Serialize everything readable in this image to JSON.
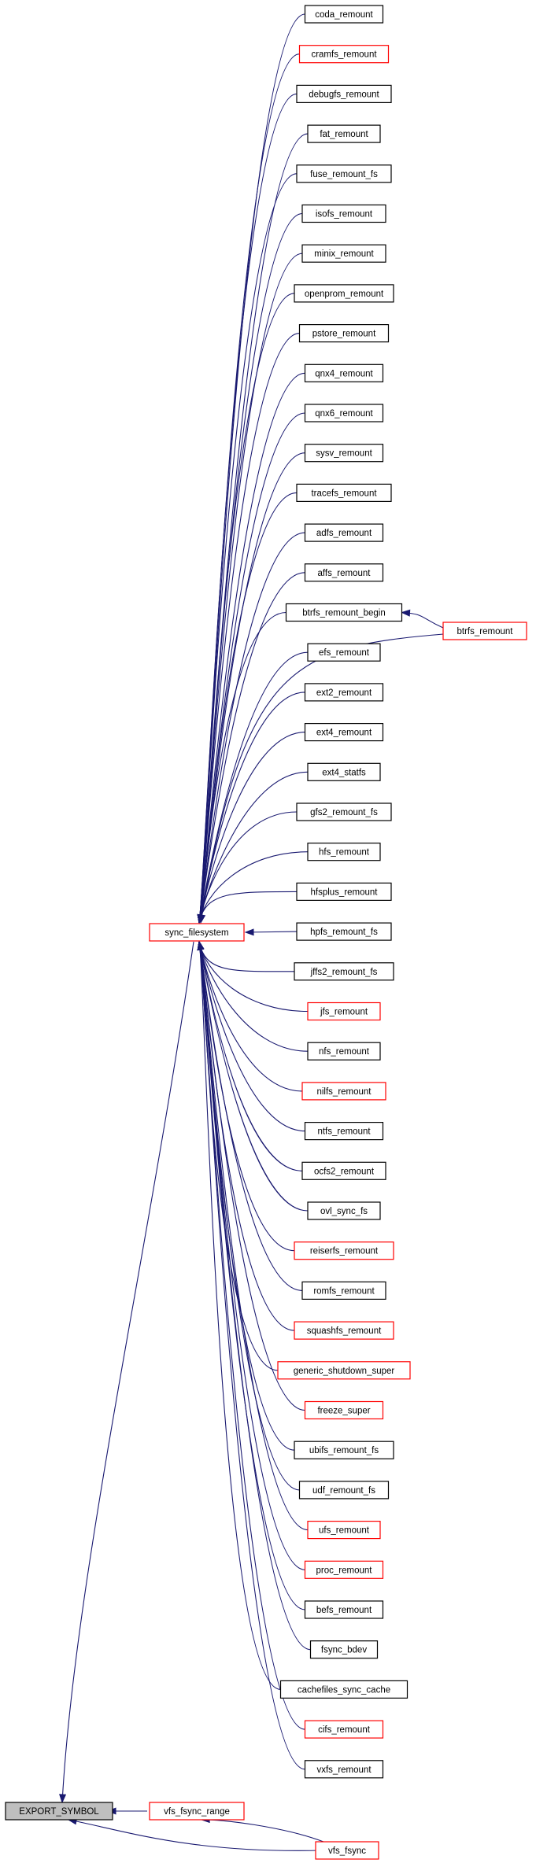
{
  "graph": {
    "colors": {
      "edge": "#191970",
      "normal_border": "#000000",
      "truncated_border": "#ff0000",
      "focus_fill": "#bfbfbf"
    },
    "focus": "EXPORT_SYMBOL",
    "hub": "sync_filesystem",
    "nodes": {
      "export_symbol": {
        "label": "EXPORT_SYMBOL",
        "style": "focus"
      },
      "sync_filesystem": {
        "label": "sync_filesystem",
        "style": "truncated"
      },
      "vfs_fsync_range": {
        "label": "vfs_fsync_range",
        "style": "truncated"
      },
      "vfs_fsync": {
        "label": "vfs_fsync",
        "style": "truncated"
      },
      "btrfs_remount": {
        "label": "btrfs_remount",
        "style": "truncated"
      }
    },
    "callers": [
      {
        "label": "coda_remount",
        "style": "normal"
      },
      {
        "label": "cramfs_remount",
        "style": "truncated"
      },
      {
        "label": "debugfs_remount",
        "style": "normal"
      },
      {
        "label": "fat_remount",
        "style": "normal"
      },
      {
        "label": "fuse_remount_fs",
        "style": "normal"
      },
      {
        "label": "isofs_remount",
        "style": "normal"
      },
      {
        "label": "minix_remount",
        "style": "normal"
      },
      {
        "label": "openprom_remount",
        "style": "normal"
      },
      {
        "label": "pstore_remount",
        "style": "normal"
      },
      {
        "label": "qnx4_remount",
        "style": "normal"
      },
      {
        "label": "qnx6_remount",
        "style": "normal"
      },
      {
        "label": "sysv_remount",
        "style": "normal"
      },
      {
        "label": "tracefs_remount",
        "style": "normal"
      },
      {
        "label": "adfs_remount",
        "style": "normal"
      },
      {
        "label": "affs_remount",
        "style": "normal"
      },
      {
        "label": "btrfs_remount_begin",
        "style": "normal"
      },
      {
        "label": "efs_remount",
        "style": "normal"
      },
      {
        "label": "ext2_remount",
        "style": "normal"
      },
      {
        "label": "ext4_remount",
        "style": "normal"
      },
      {
        "label": "ext4_statfs",
        "style": "normal"
      },
      {
        "label": "gfs2_remount_fs",
        "style": "normal"
      },
      {
        "label": "hfs_remount",
        "style": "normal"
      },
      {
        "label": "hfsplus_remount",
        "style": "normal"
      },
      {
        "label": "hpfs_remount_fs",
        "style": "normal"
      },
      {
        "label": "jffs2_remount_fs",
        "style": "normal"
      },
      {
        "label": "jfs_remount",
        "style": "truncated"
      },
      {
        "label": "nfs_remount",
        "style": "normal"
      },
      {
        "label": "nilfs_remount",
        "style": "truncated"
      },
      {
        "label": "ntfs_remount",
        "style": "normal"
      },
      {
        "label": "ocfs2_remount",
        "style": "normal"
      },
      {
        "label": "ovl_sync_fs",
        "style": "normal"
      },
      {
        "label": "reiserfs_remount",
        "style": "truncated"
      },
      {
        "label": "romfs_remount",
        "style": "normal"
      },
      {
        "label": "squashfs_remount",
        "style": "truncated"
      },
      {
        "label": "generic_shutdown_super",
        "style": "truncated"
      },
      {
        "label": "freeze_super",
        "style": "truncated"
      },
      {
        "label": "ubifs_remount_fs",
        "style": "normal"
      },
      {
        "label": "udf_remount_fs",
        "style": "normal"
      },
      {
        "label": "ufs_remount",
        "style": "truncated"
      },
      {
        "label": "proc_remount",
        "style": "truncated"
      },
      {
        "label": "befs_remount",
        "style": "normal"
      },
      {
        "label": "fsync_bdev",
        "style": "normal"
      },
      {
        "label": "cachefiles_sync_cache",
        "style": "normal"
      },
      {
        "label": "cifs_remount",
        "style": "truncated"
      },
      {
        "label": "vxfs_remount",
        "style": "normal"
      }
    ]
  }
}
